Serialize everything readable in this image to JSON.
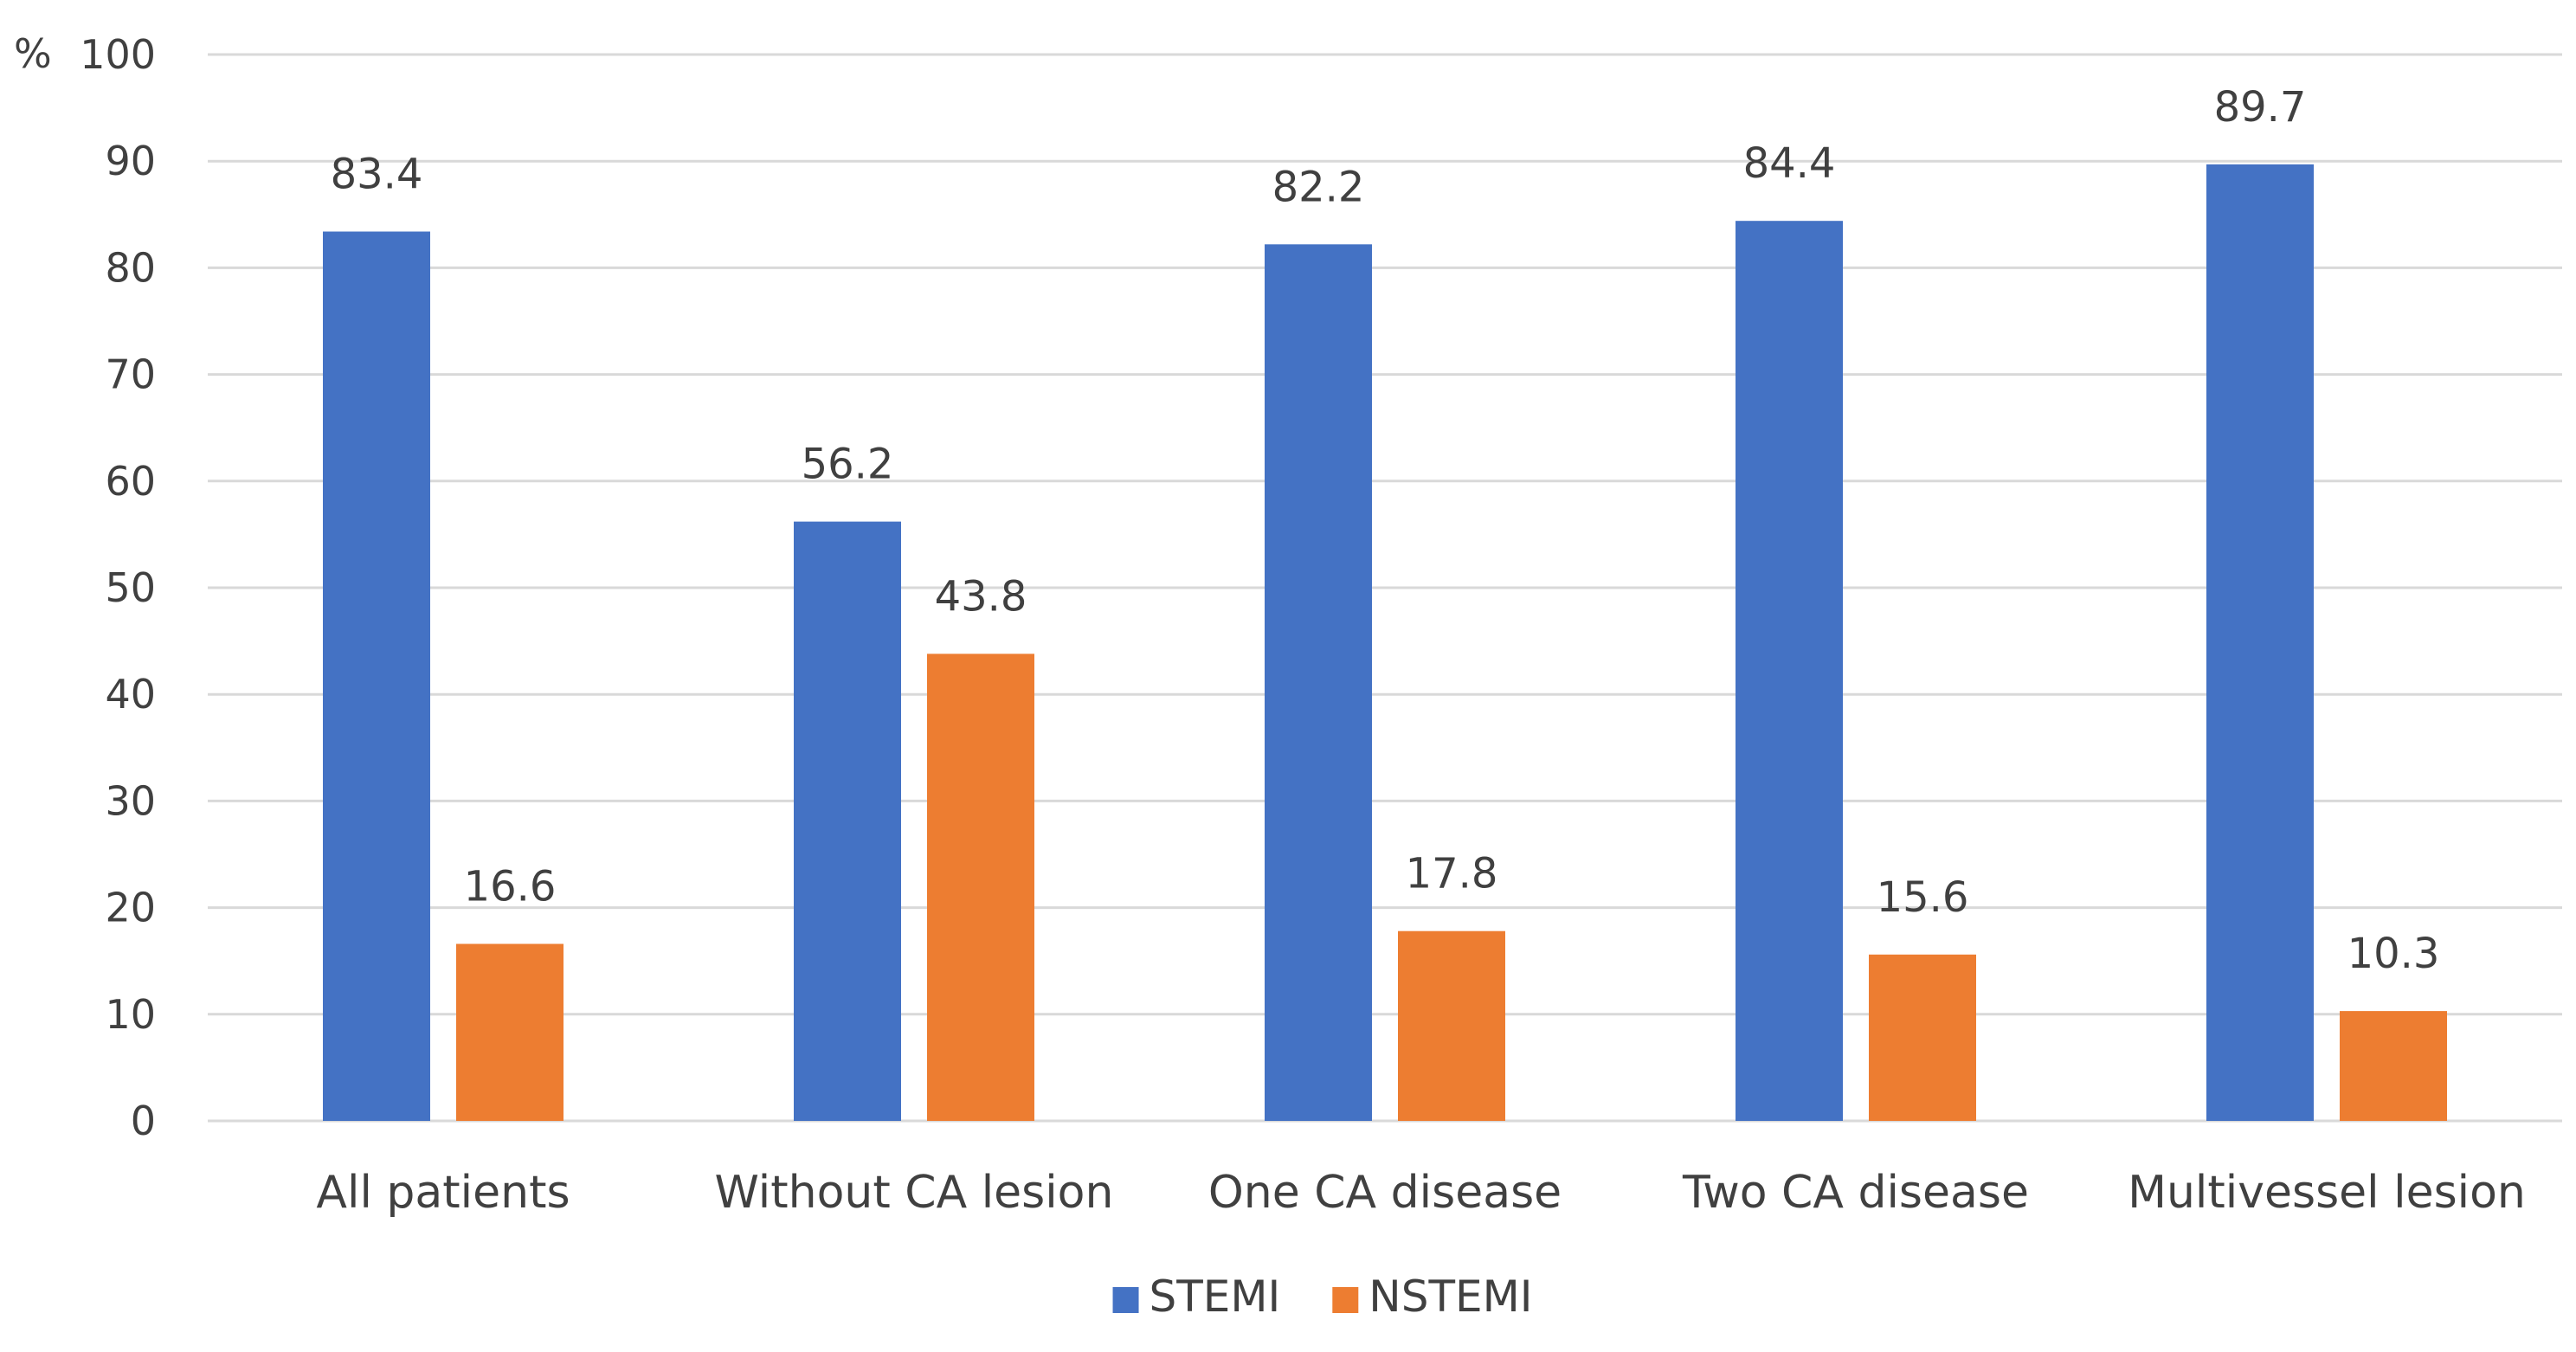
{
  "chart_data": {
    "type": "bar",
    "title": "",
    "xlabel": "",
    "ylabel": "%",
    "ylim": [
      0,
      100
    ],
    "yticks": [
      0,
      10,
      20,
      30,
      40,
      50,
      60,
      70,
      80,
      90,
      100
    ],
    "grid": true,
    "categories": [
      "All patients",
      "Without CA lesion",
      "One CA disease",
      "Two CA disease",
      "Multivessel lesion"
    ],
    "series": [
      {
        "name": "STEMI",
        "color": "#4472C4",
        "values": [
          83.4,
          56.2,
          82.2,
          84.4,
          89.7
        ]
      },
      {
        "name": "NSTEMI",
        "color": "#ED7D31",
        "values": [
          16.6,
          43.8,
          17.8,
          15.6,
          10.3
        ]
      }
    ],
    "legend_position": "bottom"
  }
}
